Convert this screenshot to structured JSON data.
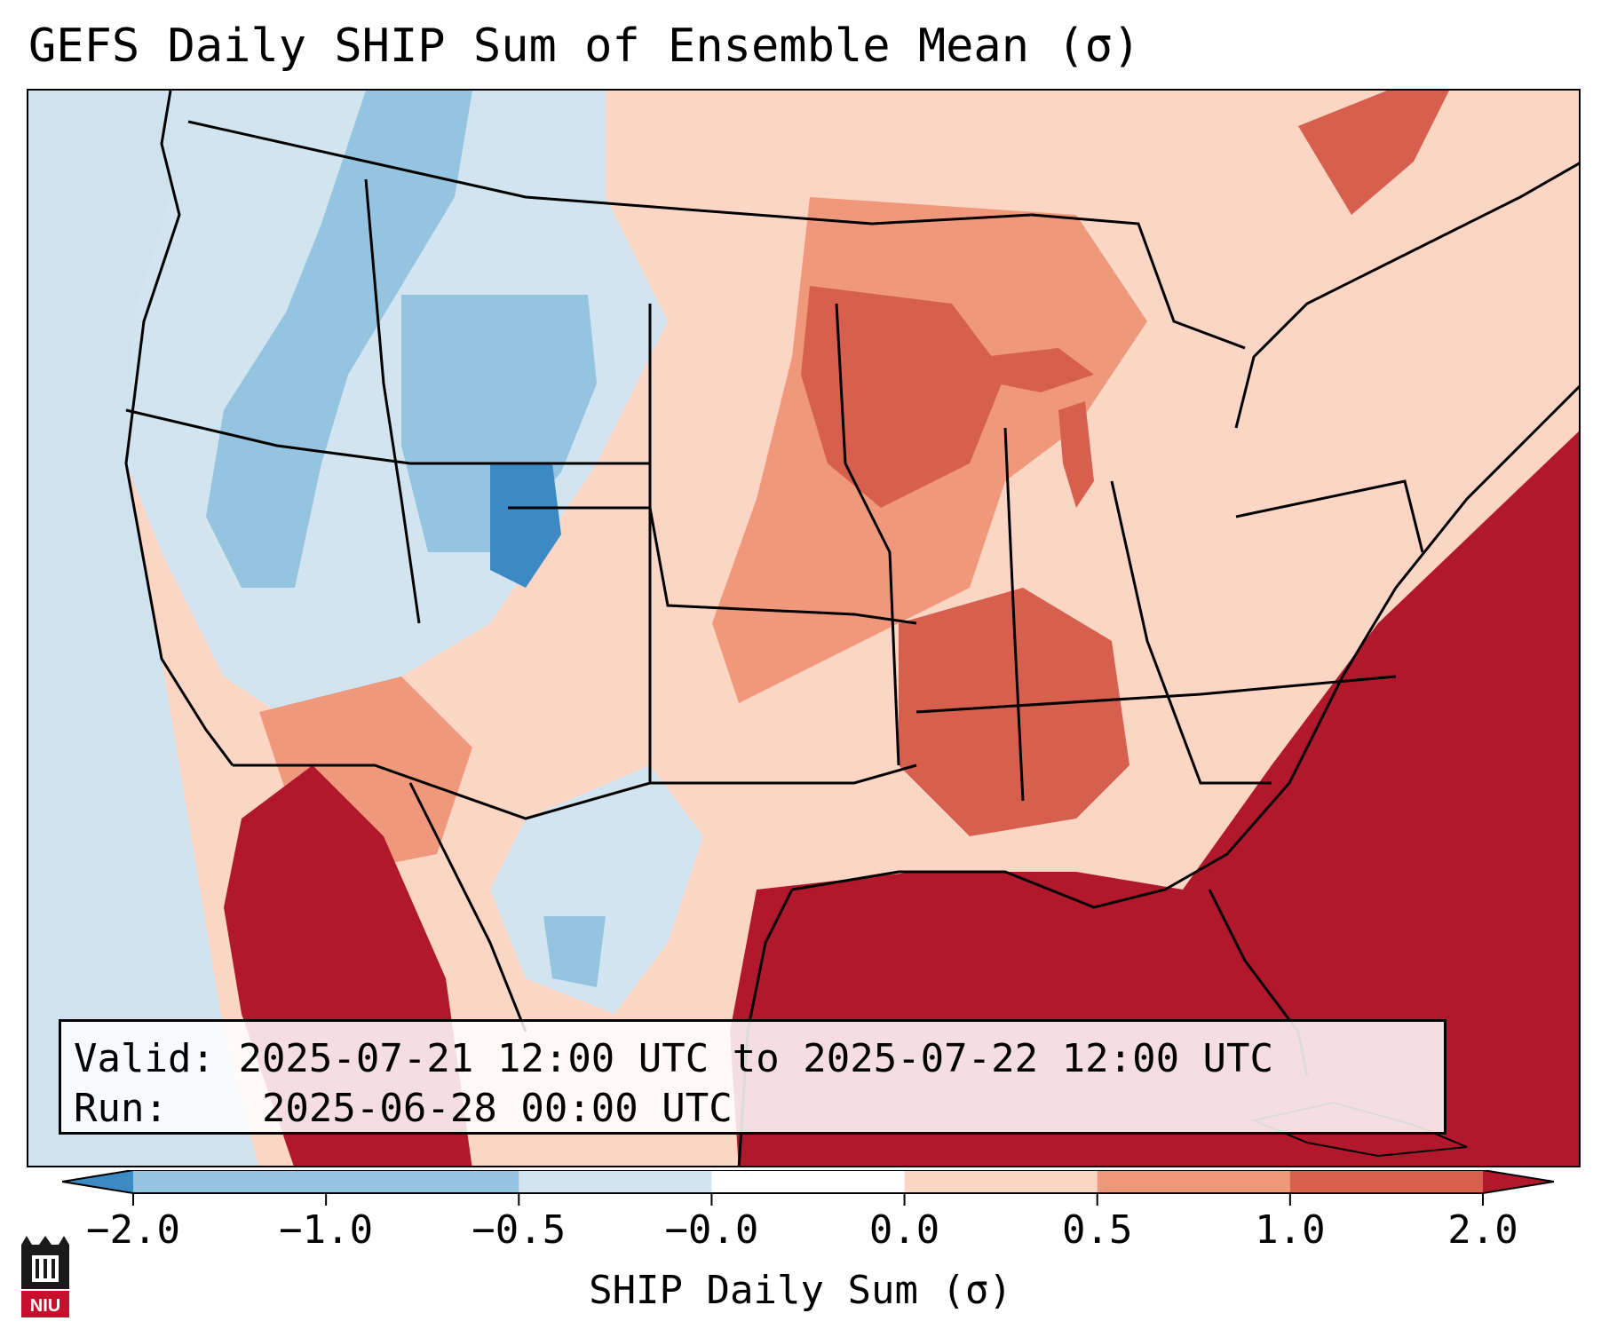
{
  "title": "GEFS Daily SHIP Sum of Ensemble Mean (σ)",
  "info": {
    "valid_label": "Valid:",
    "valid_value": "2025-07-21 12:00 UTC to 2025-07-22 12:00 UTC",
    "run_label": "Run:",
    "run_value": "2025-06-28 00:00 UTC"
  },
  "colorbar": {
    "label": "SHIP Daily Sum (σ)",
    "ticks": [
      "−2.0",
      "−1.0",
      "−0.5",
      "−0.0",
      "0.0",
      "0.5",
      "1.0",
      "2.0"
    ],
    "colors": [
      "#3b8ac4",
      "#94c4df",
      "#d1e4f0",
      "#ffffff",
      "#fbd6c4",
      "#f0987c",
      "#d6604d",
      "#b2182b"
    ],
    "extend": "both"
  },
  "map": {
    "region": "Contiguous United States",
    "ocean_color": "#cfe3ef",
    "background_fill": "#fbd6c4"
  },
  "logo": {
    "text": "NIU"
  }
}
